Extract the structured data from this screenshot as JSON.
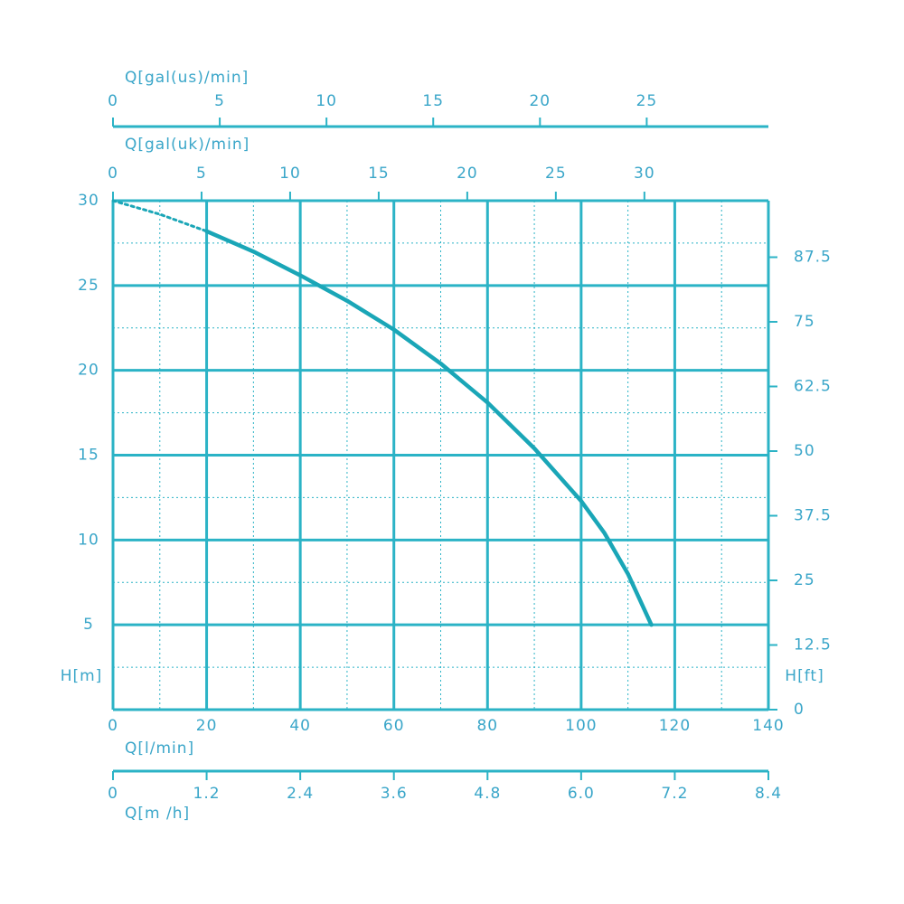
{
  "chart_data": {
    "type": "line",
    "x_axes": [
      {
        "label": "Q[gal(us)/min]",
        "xlim": [
          0,
          30.7
        ],
        "xticks": [
          0,
          5,
          10,
          15,
          20,
          25
        ]
      },
      {
        "label": "Q[gal(uk)/min]",
        "xlim": [
          0,
          37
        ],
        "xticks": [
          0,
          5,
          10,
          15,
          20,
          25,
          30
        ]
      },
      {
        "label": "Q[l/min]",
        "xlim": [
          0,
          140
        ],
        "xticks": [
          0,
          20,
          40,
          60,
          80,
          100,
          120,
          140
        ],
        "minor_xticks": [
          10,
          30,
          50,
          70,
          90,
          110,
          130
        ]
      },
      {
        "label": "Q[m /h]",
        "xlim": [
          0,
          8.4
        ],
        "xticks": [
          0,
          1.2,
          2.4,
          3.6,
          4.8,
          {
            "value": 6.0,
            "label": "6.0"
          },
          7.2,
          8.4
        ]
      }
    ],
    "ylabel": "H[m]",
    "ylim": [
      0,
      30
    ],
    "yticks": [
      5,
      10,
      15,
      20,
      25,
      30
    ],
    "minor_yticks": [
      2.5,
      7.5,
      12.5,
      17.5,
      22.5,
      27.5
    ],
    "y2label": "H[ft]",
    "y2lim": [
      0,
      98.43
    ],
    "y2ticks": [
      0,
      12.5,
      25,
      37.5,
      50,
      62.5,
      75,
      87.5
    ],
    "grid": true,
    "series": [
      {
        "color": "#1aa6b7",
        "style": "dotted",
        "x": [
          0,
          10,
          20
        ],
        "values": [
          30,
          29.2,
          28.2
        ]
      },
      {
        "color": "#1aa6b7",
        "style": "solid",
        "x": [
          20,
          30,
          40,
          50,
          60,
          70,
          80,
          90,
          100,
          105,
          110,
          115
        ],
        "values": [
          28.2,
          27,
          25.6,
          24.1,
          22.4,
          20.4,
          18.1,
          15.4,
          12.3,
          10.4,
          8,
          5
        ]
      }
    ]
  }
}
